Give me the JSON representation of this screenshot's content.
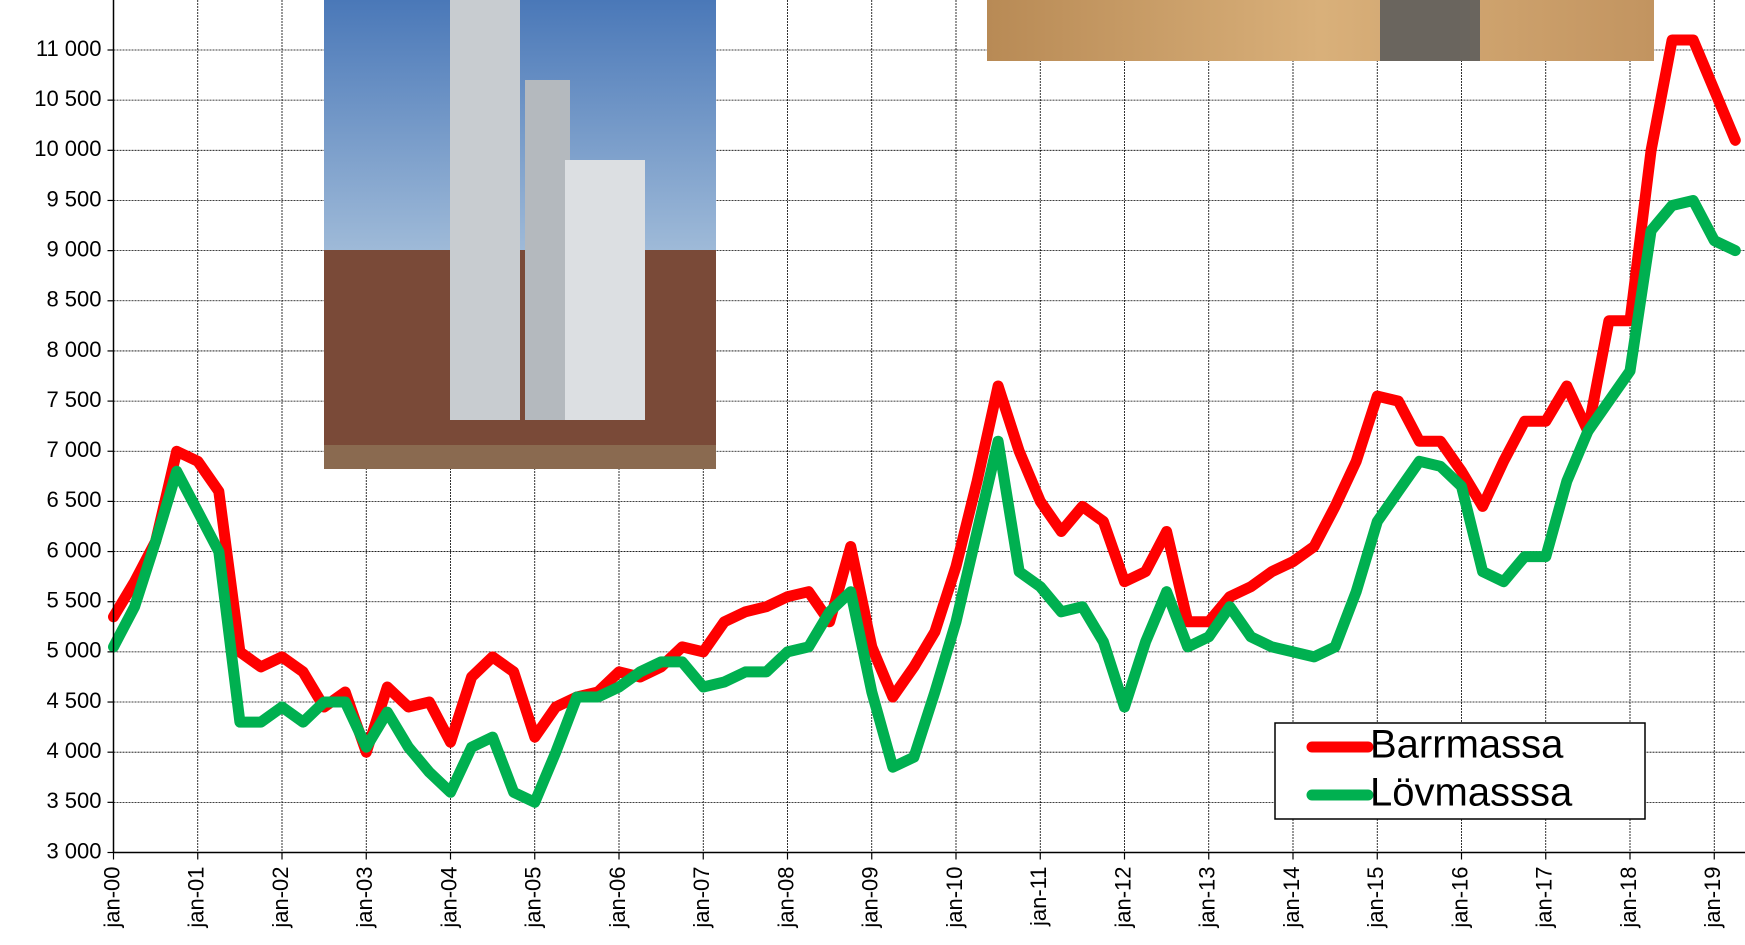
{
  "chart_data": {
    "type": "line",
    "categories": [
      "jan-00",
      null,
      null,
      null,
      "jan-01",
      null,
      null,
      null,
      "jan-02",
      null,
      null,
      null,
      "jan-03",
      null,
      null,
      null,
      "jan-04",
      null,
      null,
      null,
      "jan-05",
      null,
      null,
      null,
      "jan-06",
      null,
      null,
      null,
      "jan-07",
      null,
      null,
      null,
      "jan-08",
      null,
      null,
      null,
      "jan-09",
      null,
      null,
      null,
      "jan-10",
      null,
      null,
      null,
      "jan-11",
      null,
      null,
      null,
      "jan-12",
      null,
      null,
      null,
      "jan-13",
      null,
      null,
      null,
      "jan-14",
      null,
      null,
      null,
      "jan-15",
      null,
      null,
      null,
      "jan-16",
      null,
      null,
      null,
      "jan-17",
      null,
      null,
      null,
      "jan-18",
      null,
      null,
      null,
      "jan-19",
      null
    ],
    "series": [
      {
        "name": "Barrmassa",
        "color": "#ff0000",
        "values": [
          5350,
          5700,
          6100,
          7000,
          6900,
          6600,
          5000,
          4850,
          4950,
          4800,
          4450,
          4600,
          4000,
          4650,
          4450,
          4500,
          4100,
          4750,
          4950,
          4800,
          4150,
          4450,
          4550,
          4600,
          4800,
          4750,
          4850,
          5050,
          5000,
          5300,
          5400,
          5450,
          5550,
          5600,
          5300,
          6050,
          5050,
          4550,
          4850,
          5200,
          5850,
          6700,
          7650,
          7000,
          6500,
          6200,
          6450,
          6300,
          5700,
          5800,
          6200,
          5300,
          5300,
          5550,
          5650,
          5800,
          5900,
          6050,
          6450,
          6900,
          7550,
          7500,
          7100,
          7100,
          6800,
          6450,
          6900,
          7300,
          7300,
          7650,
          7200,
          8300,
          8300,
          10000,
          11100,
          11100,
          10600,
          10100
        ]
      },
      {
        "name": "Lövmasssa",
        "color": "#00b050",
        "values": [
          5050,
          5450,
          6100,
          6800,
          6400,
          6000,
          4300,
          4300,
          4450,
          4300,
          4500,
          4500,
          4050,
          4400,
          4050,
          3800,
          3600,
          4050,
          4150,
          3600,
          3500,
          4000,
          4550,
          4550,
          4650,
          4800,
          4900,
          4900,
          4650,
          4700,
          4800,
          4800,
          5000,
          5050,
          5400,
          5600,
          4600,
          3850,
          3950,
          4600,
          5300,
          6200,
          7100,
          5800,
          5650,
          5400,
          5450,
          5100,
          4450,
          5100,
          5600,
          5050,
          5150,
          5450,
          5150,
          5050,
          5000,
          4950,
          5050,
          5600,
          6300,
          6600,
          6900,
          6850,
          6650,
          5800,
          5700,
          5950,
          5950,
          6700,
          7200,
          7500,
          7800,
          9200,
          9450,
          9500,
          9100,
          9000
        ]
      }
    ],
    "ylim": [
      3000,
      11000
    ],
    "yticks": [
      {
        "value": 3000,
        "label": "3 000"
      },
      {
        "value": 3500,
        "label": "3 500"
      },
      {
        "value": 4000,
        "label": "4 000"
      },
      {
        "value": 4500,
        "label": "4 500"
      },
      {
        "value": 5000,
        "label": "5 000"
      },
      {
        "value": 5500,
        "label": "5 500"
      },
      {
        "value": 6000,
        "label": "6 000"
      },
      {
        "value": 6500,
        "label": "6 500"
      },
      {
        "value": 7000,
        "label": "7 000"
      },
      {
        "value": 7500,
        "label": "7 500"
      },
      {
        "value": 8000,
        "label": "8 000"
      },
      {
        "value": 8500,
        "label": "8 500"
      },
      {
        "value": 9000,
        "label": "9 000"
      },
      {
        "value": 9500,
        "label": "9 500"
      },
      {
        "value": 10000,
        "label": "10 000"
      },
      {
        "value": 10500,
        "label": "10 500"
      },
      {
        "value": 11000,
        "label": "11 000"
      }
    ],
    "grid": true
  }
}
